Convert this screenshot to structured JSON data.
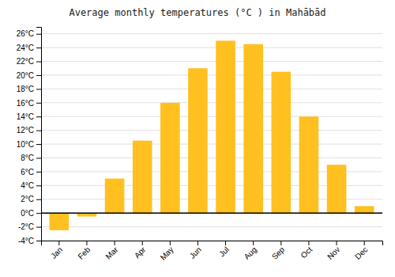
{
  "chart_data": {
    "type": "bar",
    "title": "Average monthly temperatures (°C ) in Mahābād",
    "categories": [
      "Jan",
      "Feb",
      "Mar",
      "Apr",
      "May",
      "Jun",
      "Jul",
      "Aug",
      "Sep",
      "Oct",
      "Nov",
      "Dec"
    ],
    "values": [
      -2.5,
      -0.5,
      5.0,
      10.5,
      16.0,
      21.0,
      25.0,
      24.5,
      20.5,
      14.0,
      7.0,
      1.0
    ],
    "color": "#FFC020",
    "ylim": [
      -4,
      27
    ],
    "yticks": [
      {
        "value": -4,
        "label": "-4°C"
      },
      {
        "value": -2,
        "label": "-2°C"
      },
      {
        "value": 0,
        "label": "0°C"
      },
      {
        "value": 2,
        "label": "2°C"
      },
      {
        "value": 4,
        "label": "4°C"
      },
      {
        "value": 6,
        "label": "6°C"
      },
      {
        "value": 8,
        "label": "8°C"
      },
      {
        "value": 10,
        "label": "10°C"
      },
      {
        "value": 12,
        "label": "12°C"
      },
      {
        "value": 14,
        "label": "14°C"
      },
      {
        "value": 16,
        "label": "16°C"
      },
      {
        "value": 18,
        "label": "18°C"
      },
      {
        "value": 20,
        "label": "20°C"
      },
      {
        "value": 22,
        "label": "22°C"
      },
      {
        "value": 24,
        "label": "24°C"
      },
      {
        "value": 26,
        "label": "26°C"
      }
    ],
    "grid": true
  }
}
